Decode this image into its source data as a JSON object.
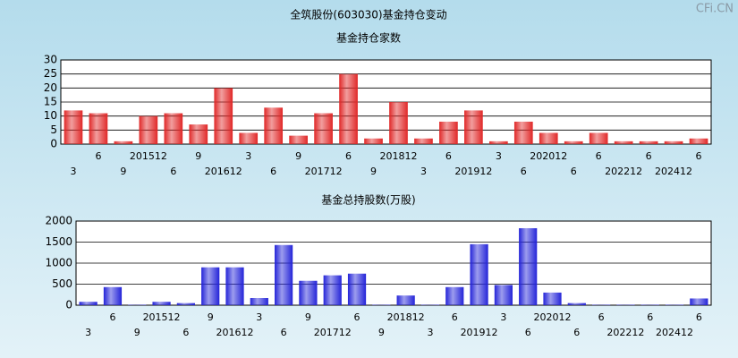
{
  "title": "全筑股份(603030)基金持仓变动",
  "watermark": "CFi.CN",
  "chart_data": [
    {
      "type": "bar",
      "title": "基金持仓家数",
      "color": "#e02828",
      "categories": [
        "3",
        "6",
        "9",
        "201512",
        "6",
        "9",
        "201612",
        "3",
        "6",
        "9",
        "201712",
        "6",
        "9",
        "201812",
        "3",
        "6",
        "201912",
        "3",
        "6",
        "202012",
        "6",
        "6",
        "202212",
        "6",
        "202412",
        "6"
      ],
      "values": [
        12,
        11,
        1,
        10,
        11,
        7,
        20,
        4,
        13,
        3,
        11,
        25,
        2,
        15,
        2,
        8,
        12,
        1,
        8,
        4,
        1,
        4,
        1,
        1,
        1,
        2
      ],
      "ylim": [
        0,
        30
      ],
      "yticks": [
        0,
        5,
        10,
        15,
        20,
        25,
        30
      ],
      "grid": true
    },
    {
      "type": "bar",
      "title": "基金总持股数(万股)",
      "color": "#2424d8",
      "categories": [
        "3",
        "6",
        "9",
        "201512",
        "6",
        "9",
        "201612",
        "3",
        "6",
        "9",
        "201712",
        "6",
        "9",
        "201812",
        "3",
        "6",
        "201912",
        "3",
        "6",
        "202012",
        "6",
        "6",
        "202212",
        "6",
        "202412",
        "6"
      ],
      "values": [
        80,
        430,
        10,
        80,
        50,
        900,
        900,
        170,
        1430,
        580,
        710,
        750,
        10,
        230,
        10,
        430,
        1450,
        480,
        1830,
        300,
        50,
        10,
        10,
        10,
        10,
        160
      ],
      "ylim": [
        0,
        2000
      ],
      "yticks": [
        0,
        500,
        1000,
        1500,
        2000
      ],
      "grid": true
    }
  ]
}
